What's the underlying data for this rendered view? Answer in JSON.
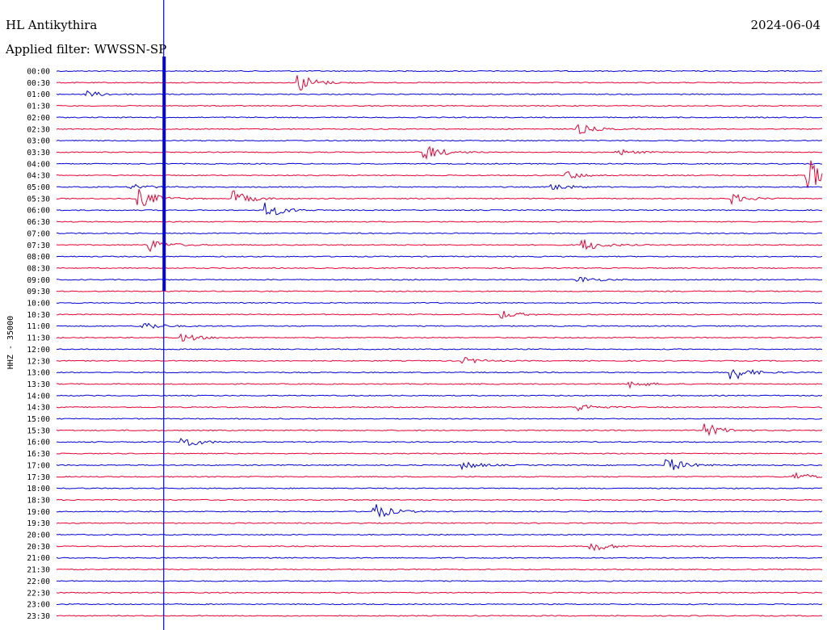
{
  "header": {
    "station": "HL Antikythira",
    "date": "2024-06-04",
    "filter": "Applied filter: WWSSN-SP"
  },
  "chart_data": {
    "type": "line",
    "title": "HL Antikythira",
    "ylabel": "HHZ - 35000",
    "row_labels": [
      "00:00",
      "00:30",
      "01:00",
      "01:30",
      "02:00",
      "02:30",
      "03:00",
      "03:30",
      "04:00",
      "04:30",
      "05:00",
      "05:30",
      "06:00",
      "06:30",
      "07:00",
      "07:30",
      "08:00",
      "08:30",
      "09:00",
      "09:30",
      "10:00",
      "10:30",
      "11:00",
      "11:30",
      "12:00",
      "12:30",
      "13:00",
      "13:30",
      "14:00",
      "14:30",
      "15:00",
      "15:30",
      "16:00",
      "16:30",
      "17:00",
      "17:30",
      "18:00",
      "18:30",
      "19:00",
      "19:30",
      "20:00",
      "20:30",
      "21:00",
      "21:30",
      "22:00",
      "22:30",
      "23:00",
      "23:30"
    ],
    "series_colors": [
      "#0000dd",
      "#ee0033"
    ],
    "row_minutes": 30,
    "big_event": {
      "row": 8,
      "minute": 4.2
    },
    "events": [
      {
        "row": 1,
        "minute": 9.5,
        "amp": 12
      },
      {
        "row": 2,
        "minute": 1.2,
        "amp": 4
      },
      {
        "row": 5,
        "minute": 20.5,
        "amp": 6
      },
      {
        "row": 7,
        "minute": 14.5,
        "amp": 10
      },
      {
        "row": 7,
        "minute": 22,
        "amp": 4
      },
      {
        "row": 9,
        "minute": 20,
        "amp": 5
      },
      {
        "row": 9,
        "minute": 29.5,
        "amp": 20
      },
      {
        "row": 10,
        "minute": 3,
        "amp": 4
      },
      {
        "row": 10,
        "minute": 19.5,
        "amp": 5
      },
      {
        "row": 11,
        "minute": 3.3,
        "amp": 12
      },
      {
        "row": 11,
        "minute": 7,
        "amp": 9
      },
      {
        "row": 11,
        "minute": 26.5,
        "amp": 6
      },
      {
        "row": 12,
        "minute": 8.3,
        "amp": 9
      },
      {
        "row": 15,
        "minute": 3.7,
        "amp": 8
      },
      {
        "row": 15,
        "minute": 20.7,
        "amp": 8
      },
      {
        "row": 18,
        "minute": 20.5,
        "amp": 4
      },
      {
        "row": 21,
        "minute": 17.5,
        "amp": 5
      },
      {
        "row": 22,
        "minute": 3.5,
        "amp": 5
      },
      {
        "row": 23,
        "minute": 5,
        "amp": 5
      },
      {
        "row": 25,
        "minute": 16,
        "amp": 4
      },
      {
        "row": 26,
        "minute": 26.5,
        "amp": 10
      },
      {
        "row": 27,
        "minute": 22.5,
        "amp": 5
      },
      {
        "row": 29,
        "minute": 20.5,
        "amp": 5
      },
      {
        "row": 31,
        "minute": 25.5,
        "amp": 8
      },
      {
        "row": 32,
        "minute": 5,
        "amp": 7
      },
      {
        "row": 34,
        "minute": 24,
        "amp": 9
      },
      {
        "row": 34,
        "minute": 16,
        "amp": 5
      },
      {
        "row": 35,
        "minute": 29,
        "amp": 5
      },
      {
        "row": 38,
        "minute": 12.5,
        "amp": 10
      },
      {
        "row": 41,
        "minute": 21,
        "amp": 7
      }
    ]
  }
}
